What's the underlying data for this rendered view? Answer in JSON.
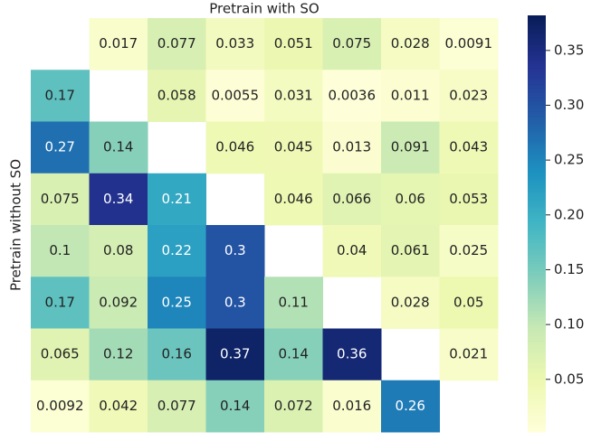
{
  "chart_data": {
    "type": "heatmap",
    "title": "Pretrain with SO",
    "ylabel": "Pretrain without SO",
    "z": [
      [
        null,
        0.017,
        0.077,
        0.033,
        0.051,
        0.075,
        0.028,
        0.0091
      ],
      [
        0.17,
        null,
        0.058,
        0.0055,
        0.031,
        0.0036,
        0.011,
        0.023
      ],
      [
        0.27,
        0.14,
        null,
        0.046,
        0.045,
        0.013,
        0.091,
        0.043
      ],
      [
        0.075,
        0.34,
        0.21,
        null,
        0.046,
        0.066,
        0.06,
        0.053
      ],
      [
        0.1,
        0.08,
        0.22,
        0.3,
        null,
        0.04,
        0.061,
        0.025
      ],
      [
        0.17,
        0.092,
        0.25,
        0.3,
        0.11,
        null,
        0.028,
        0.05
      ],
      [
        0.065,
        0.12,
        0.16,
        0.37,
        0.14,
        0.36,
        null,
        0.021
      ],
      [
        0.0092,
        0.042,
        0.077,
        0.14,
        0.072,
        0.016,
        0.26,
        null
      ]
    ],
    "colorscale": [
      "#ffffd9",
      "#edf8b1",
      "#c7e9b4",
      "#7fcdbb",
      "#41b6c4",
      "#1d91c0",
      "#225ea8",
      "#253494",
      "#081d58"
    ],
    "zlim": [
      0.002,
      0.382
    ],
    "zticks": [
      0.05,
      {
        "value": 0.1,
        "label": "0.10"
      },
      0.15,
      {
        "value": 0.2,
        "label": "0.20"
      },
      0.25,
      {
        "value": 0.3,
        "label": "0.30"
      },
      0.35
    ]
  }
}
